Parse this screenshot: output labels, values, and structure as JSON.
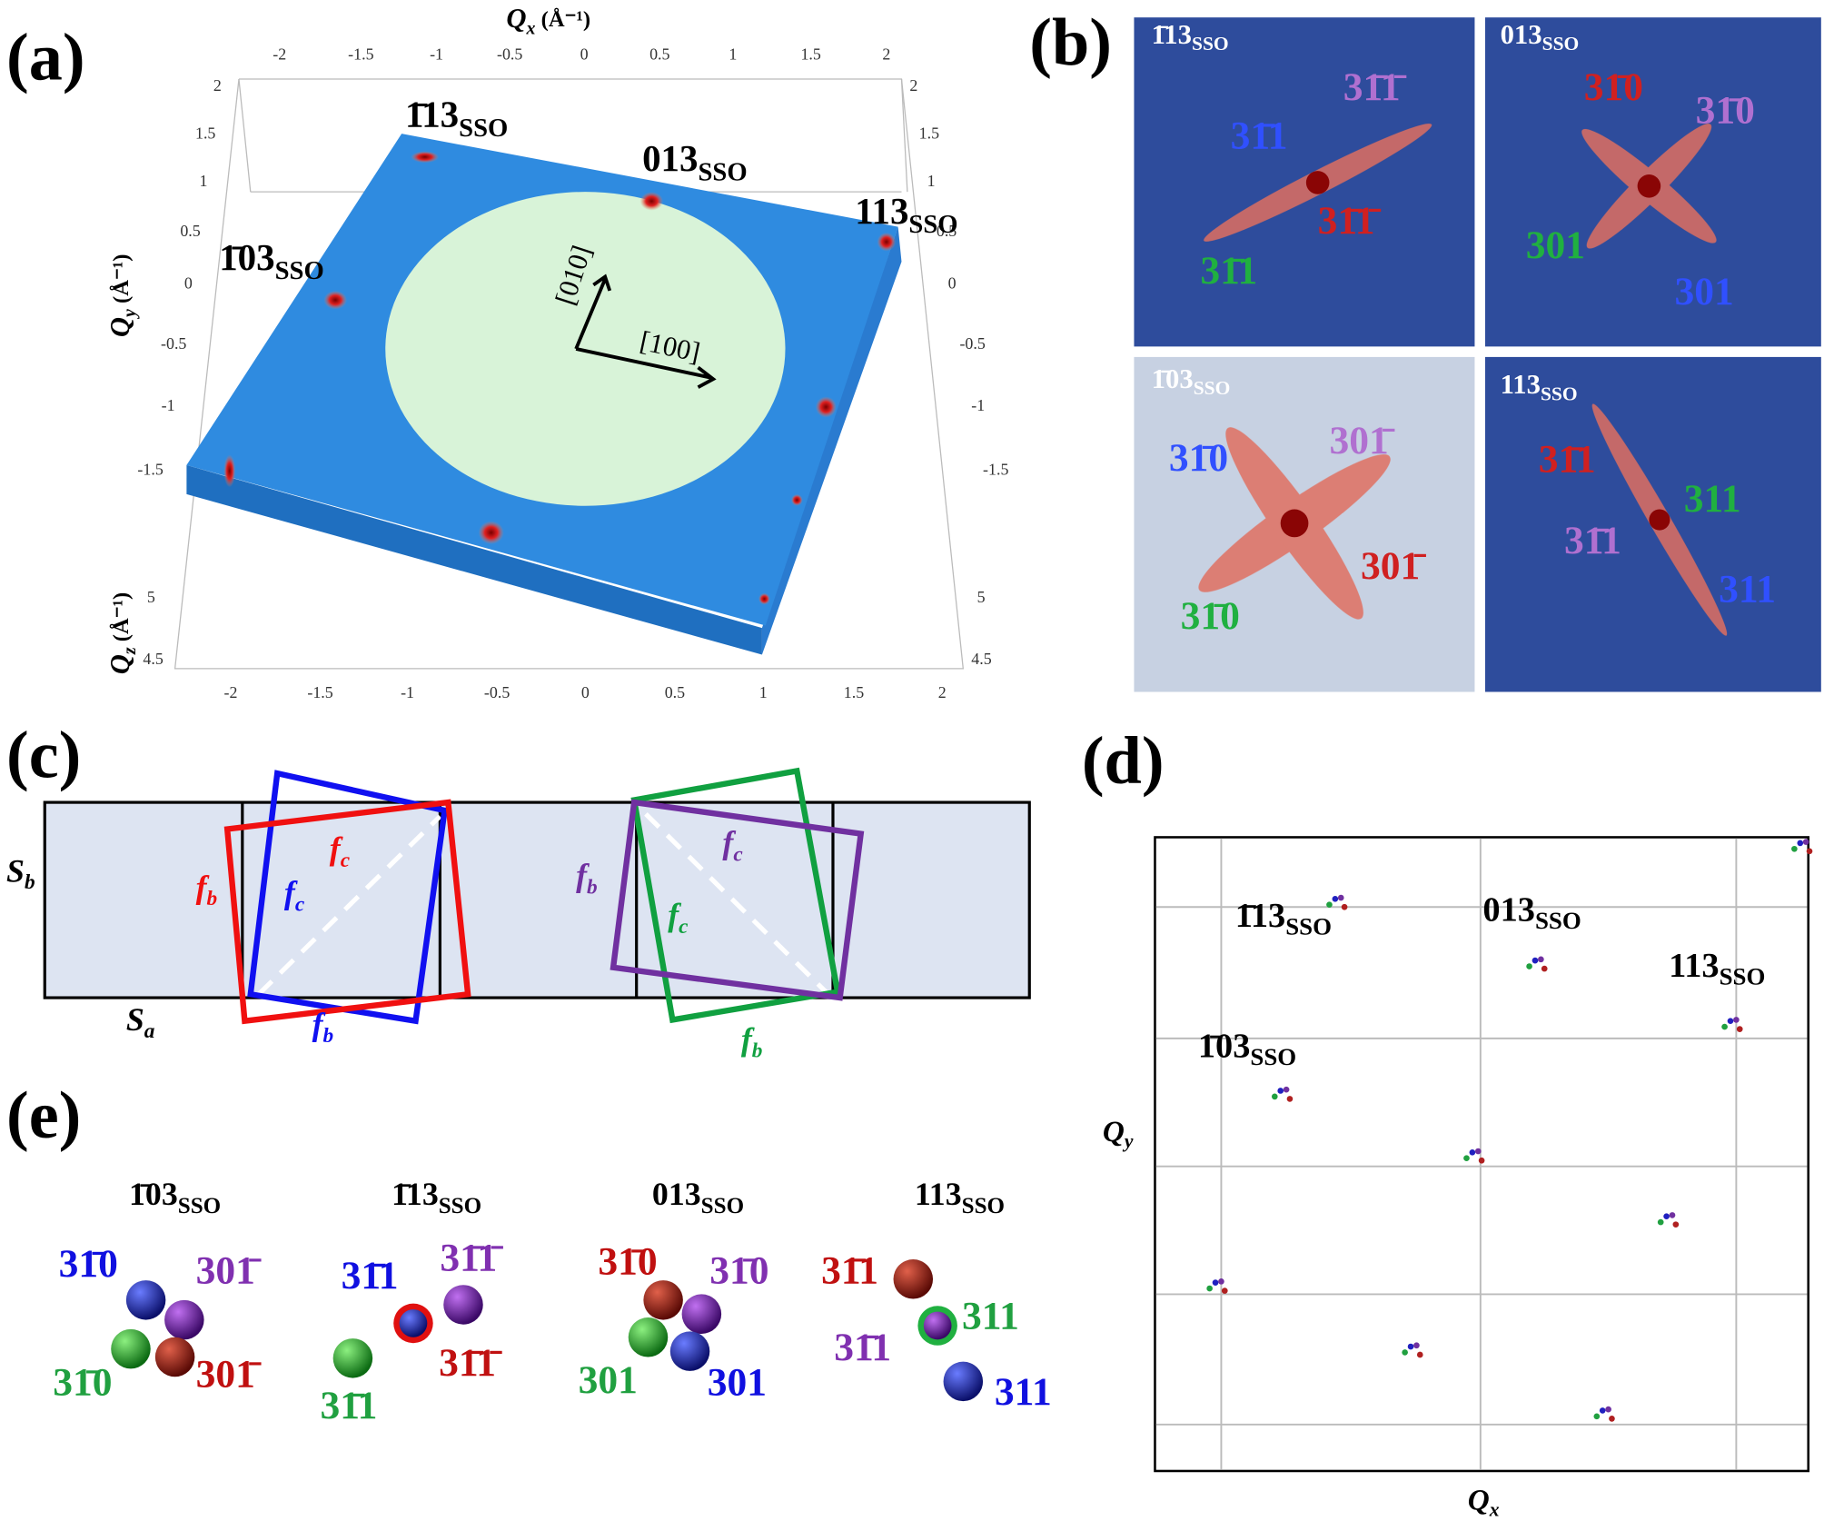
{
  "panel_a": {
    "label": "(a)",
    "x_title": {
      "symbol": "Q",
      "sub": "x",
      "unit": " (Å⁻¹)"
    },
    "y_title": {
      "symbol": "Q",
      "sub": "y",
      "unit": " (Å⁻¹)"
    },
    "z_title": {
      "symbol": "Q",
      "sub": "z",
      "unit": " (Å⁻¹)"
    },
    "top_ticks": [
      "-2",
      "-1.5",
      "-1",
      "-0.5",
      "0",
      "0.5",
      "1",
      "1.5",
      "2"
    ],
    "bottom_ticks": [
      "-2",
      "-1.5",
      "-1",
      "-0.5",
      "0",
      "0.5",
      "1",
      "1.5",
      "2"
    ],
    "left_ticks": [
      "2",
      "1.5",
      "1",
      "0.5",
      "0",
      "-0.5",
      "-1",
      "-1.5"
    ],
    "right_ticks": [
      "2",
      "1.5",
      "1",
      "0.5",
      "0",
      "-0.5",
      "-1",
      "-1.5"
    ],
    "z_ticks_left": [
      "5",
      "4.5"
    ],
    "z_ticks_right": [
      "5",
      "4.5"
    ],
    "reflections": [
      {
        "hkl": "1̄13",
        "sub": "SSO"
      },
      {
        "hkl": "013",
        "sub": "SSO"
      },
      {
        "hkl": "113",
        "sub": "SSO"
      },
      {
        "hkl": "1̄03",
        "sub": "SSO"
      }
    ],
    "directions": [
      "[010]",
      "[100]"
    ]
  },
  "panel_b": {
    "label": "(b)",
    "tiles": [
      {
        "title": {
          "hkl": "1̄13",
          "sub": "SSO"
        },
        "peaks": [
          "31̄1̄",
          "31̄1",
          "31̄1̄",
          "31̄1"
        ]
      },
      {
        "title": {
          "hkl": "013",
          "sub": "SSO"
        },
        "peaks": [
          "31̄0",
          "31̄0",
          "301",
          "301"
        ]
      },
      {
        "title": {
          "hkl": "1̄03",
          "sub": "SSO"
        },
        "peaks": [
          "31̄0",
          "301̄",
          "301̄",
          "31̄0"
        ]
      },
      {
        "title": {
          "hkl": "113",
          "sub": "SSO"
        },
        "peaks": [
          "31̄1",
          "311",
          "31̄1",
          "311"
        ]
      }
    ]
  },
  "panel_c": {
    "label": "(c)",
    "s_b": {
      "symbol": "S",
      "sub": "b"
    },
    "s_a": {
      "symbol": "S",
      "sub": "a"
    },
    "frames": [
      {
        "symbol": "f",
        "sub": "c"
      },
      {
        "symbol": "f",
        "sub": "b"
      },
      {
        "symbol": "f",
        "sub": "c"
      },
      {
        "symbol": "f",
        "sub": "b"
      },
      {
        "symbol": "f",
        "sub": "b"
      },
      {
        "symbol": "f",
        "sub": "c"
      },
      {
        "symbol": "f",
        "sub": "c"
      },
      {
        "symbol": "f",
        "sub": "b"
      }
    ]
  },
  "panel_d": {
    "label": "(d)",
    "x_title": {
      "symbol": "Q",
      "sub": "x"
    },
    "y_title": {
      "symbol": "Q",
      "sub": "y"
    },
    "reflections": [
      {
        "hkl": "1̄13",
        "sub": "SSO"
      },
      {
        "hkl": "013",
        "sub": "SSO"
      },
      {
        "hkl": "113",
        "sub": "SSO"
      },
      {
        "hkl": "1̄03",
        "sub": "SSO"
      }
    ]
  },
  "panel_e": {
    "label": "(e)",
    "groups": [
      {
        "title": {
          "hkl": "1̄03",
          "sub": "SSO"
        },
        "peaks": [
          "31̄0",
          "301̄",
          "31̄0",
          "301̄"
        ]
      },
      {
        "title": {
          "hkl": "1̄13",
          "sub": "SSO"
        },
        "peaks": [
          "31̄1",
          "31̄1̄",
          "31̄1̄",
          "31̄1"
        ]
      },
      {
        "title": {
          "hkl": "013",
          "sub": "SSO"
        },
        "peaks": [
          "31̄0",
          "31̄0",
          "301",
          "301"
        ]
      },
      {
        "title": {
          "hkl": "113",
          "sub": "SSO"
        },
        "peaks": [
          "31̄1",
          "311",
          "31̄1",
          "311"
        ]
      }
    ]
  }
}
